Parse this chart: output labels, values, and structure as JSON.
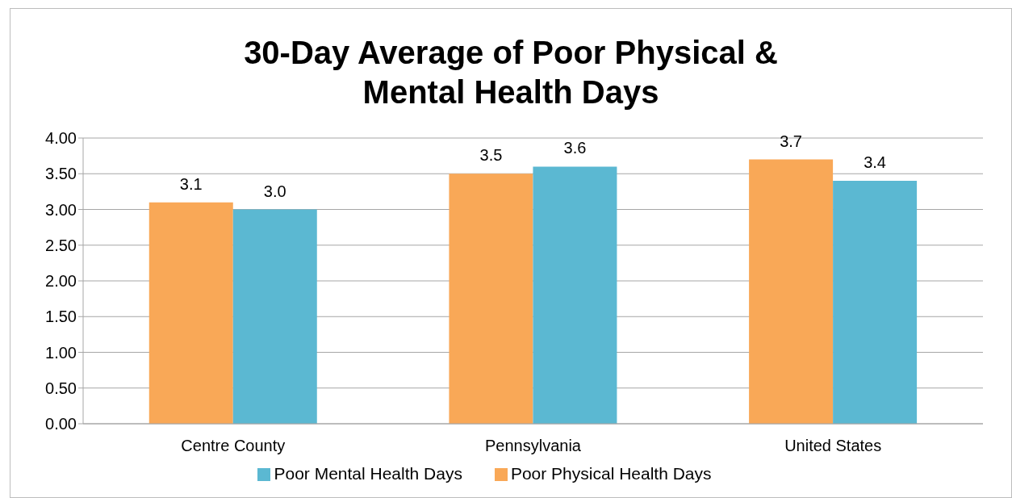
{
  "chart_data": {
    "type": "bar",
    "title": "30-Day Average of Poor Physical &\nMental Health Days",
    "categories": [
      "Centre County",
      "Pennsylvania",
      "United States"
    ],
    "series": [
      {
        "name": "Poor Physical Health Days",
        "color": "#f9a857",
        "values": [
          3.1,
          3.5,
          3.7
        ],
        "value_labels": [
          "3.1",
          "3.5",
          "3.7"
        ]
      },
      {
        "name": "Poor Mental Health Days",
        "color": "#5bb8d2",
        "values": [
          3.0,
          3.6,
          3.4
        ],
        "value_labels": [
          "3.0",
          "3.6",
          "3.4"
        ]
      }
    ],
    "ylim": [
      0,
      4
    ],
    "yticks": [
      {
        "value": 0,
        "label": "0.00"
      },
      {
        "value": 0.5,
        "label": "0.50"
      },
      {
        "value": 1,
        "label": "1.00"
      },
      {
        "value": 1.5,
        "label": "1.50"
      },
      {
        "value": 2,
        "label": "2.00"
      },
      {
        "value": 2.5,
        "label": "2.50"
      },
      {
        "value": 3,
        "label": "3.00"
      },
      {
        "value": 3.5,
        "label": "3.50"
      },
      {
        "value": 4,
        "label": "4.00"
      }
    ],
    "grid": "y",
    "legend": "bottom"
  }
}
